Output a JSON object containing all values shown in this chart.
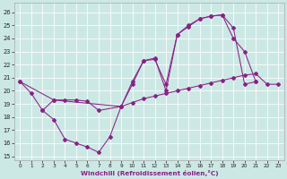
{
  "bg_color": "#cce8e4",
  "line_color": "#882288",
  "xlabel": "Windchill (Refroidissement éolien,°C)",
  "xlim": [
    -0.5,
    23.5
  ],
  "ylim": [
    14.7,
    26.7
  ],
  "yticks": [
    15,
    16,
    17,
    18,
    19,
    20,
    21,
    22,
    23,
    24,
    25,
    26
  ],
  "xticks": [
    0,
    1,
    2,
    3,
    4,
    5,
    6,
    7,
    8,
    9,
    10,
    11,
    12,
    13,
    14,
    15,
    16,
    17,
    18,
    19,
    20,
    21,
    22,
    23
  ],
  "curve_a_x": [
    0,
    1,
    2,
    3,
    4,
    5,
    6,
    7,
    8,
    9,
    10,
    11,
    12,
    13,
    14,
    15,
    16,
    17,
    18,
    19,
    20,
    21
  ],
  "curve_a_y": [
    20.7,
    19.8,
    18.5,
    17.8,
    16.3,
    16.0,
    15.7,
    15.3,
    16.5,
    18.8,
    20.7,
    22.3,
    22.5,
    20.0,
    24.3,
    24.9,
    25.5,
    25.7,
    25.8,
    24.0,
    23.0,
    20.7
  ],
  "curve_b_x": [
    0,
    3,
    9,
    10,
    11,
    12,
    13,
    14,
    15,
    16,
    17,
    18,
    19,
    20,
    21
  ],
  "curve_b_y": [
    20.7,
    19.3,
    18.8,
    20.5,
    22.3,
    22.4,
    20.5,
    24.3,
    25.0,
    25.5,
    25.7,
    25.8,
    24.8,
    20.5,
    20.7
  ],
  "curve_c_x": [
    2,
    3,
    4,
    5,
    6,
    7,
    9,
    10,
    11,
    12,
    13,
    14,
    15,
    16,
    17,
    18,
    19,
    20,
    21,
    22,
    23
  ],
  "curve_c_y": [
    18.5,
    19.3,
    19.3,
    19.3,
    19.2,
    18.5,
    18.8,
    19.1,
    19.4,
    19.6,
    19.8,
    20.0,
    20.2,
    20.4,
    20.6,
    20.8,
    21.0,
    21.2,
    21.3,
    20.5,
    20.5
  ]
}
